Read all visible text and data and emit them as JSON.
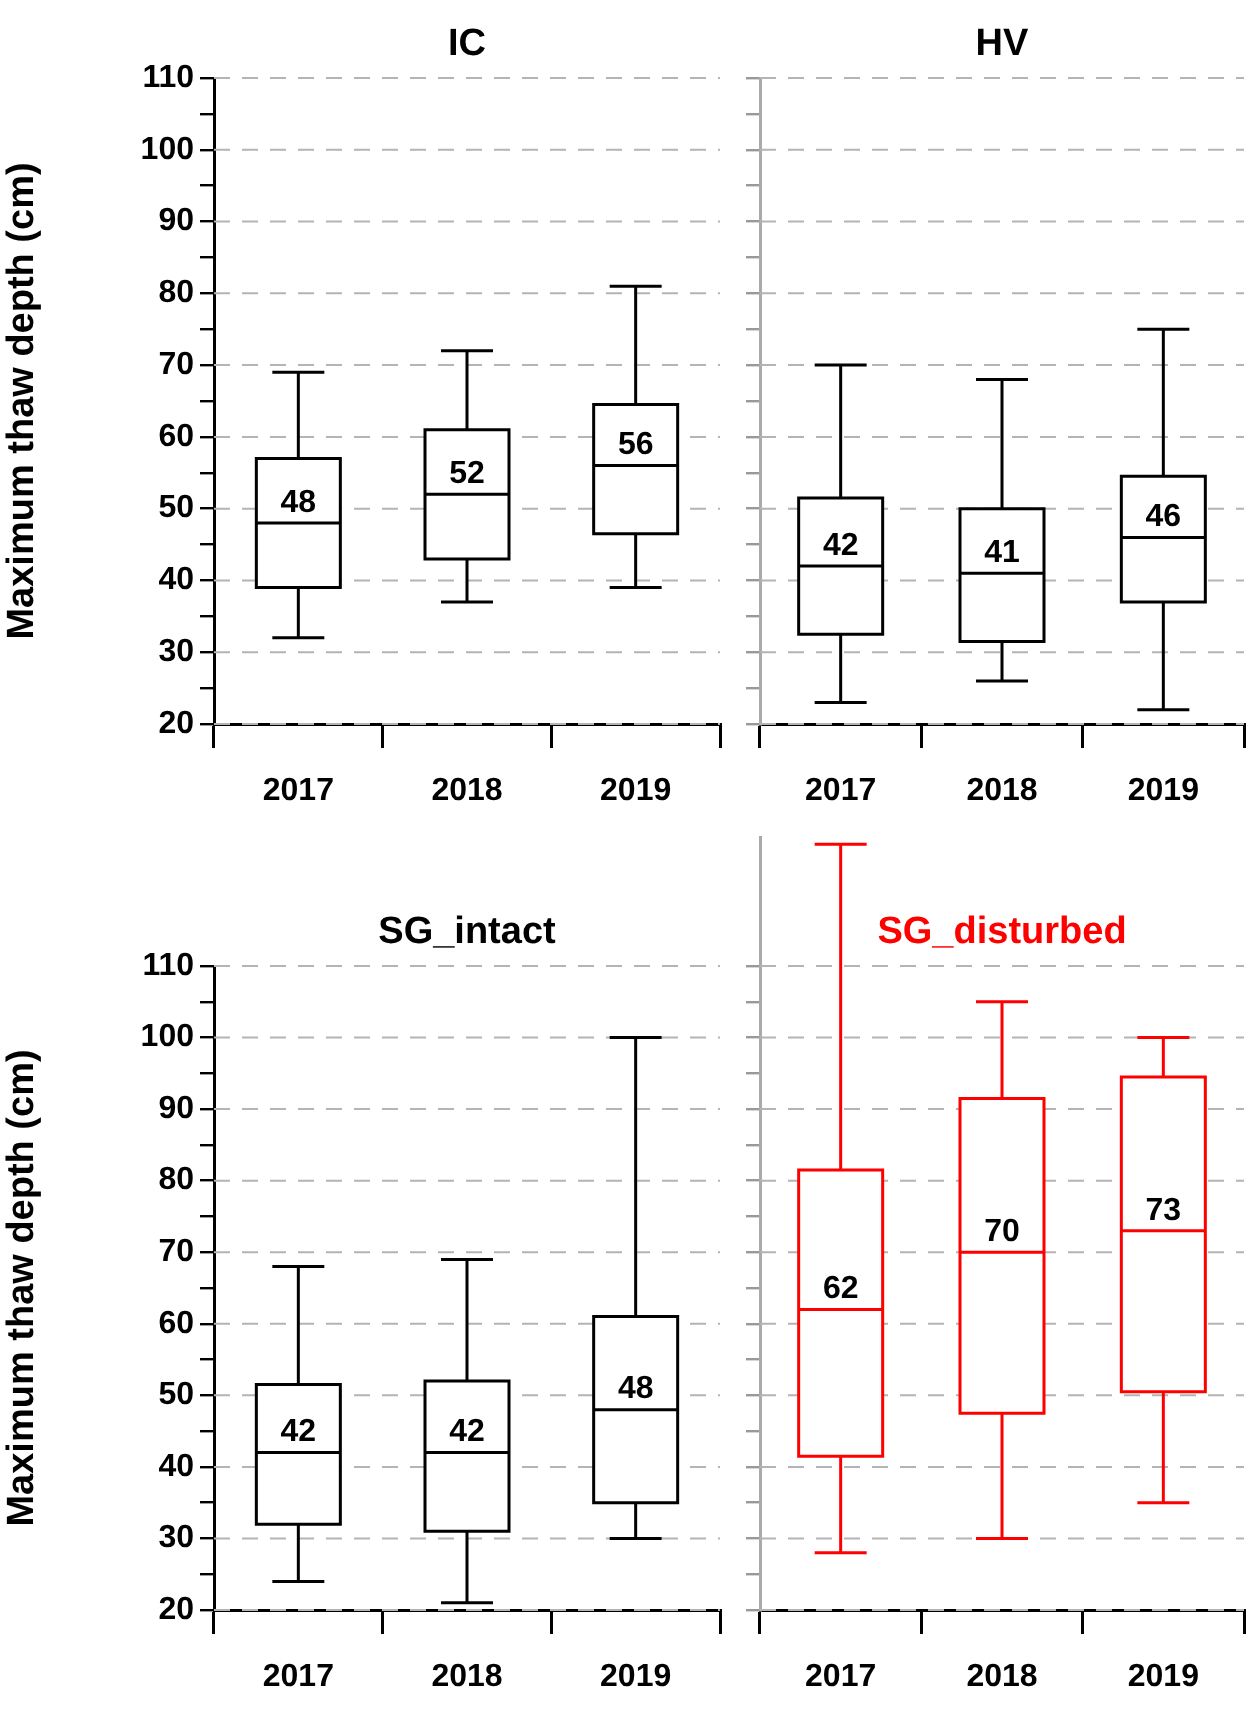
{
  "chart_data": [
    {
      "type": "box",
      "title": "IC",
      "ylabel": "Maximum thaw depth (cm)",
      "categories": [
        "2017",
        "2018",
        "2019"
      ],
      "series": [
        {
          "color": "#000000",
          "boxes": [
            {
              "low": 32,
              "q1": 39,
              "median": 48,
              "q3": 57,
              "high": 69
            },
            {
              "low": 37,
              "q1": 43,
              "median": 52,
              "q3": 61,
              "high": 72
            },
            {
              "low": 39,
              "q1": 46.5,
              "median": 56,
              "q3": 64.5,
              "high": 81
            }
          ]
        }
      ],
      "ylim": [
        20,
        110
      ],
      "yticks": [
        20,
        {
          "value": 25,
          "label": null
        },
        30,
        {
          "value": 35,
          "label": null
        },
        40,
        {
          "value": 45,
          "label": null
        },
        50,
        {
          "value": 55,
          "label": null
        },
        60,
        {
          "value": 65,
          "label": null
        },
        70,
        {
          "value": 75,
          "label": null
        },
        80,
        {
          "value": 85,
          "label": null
        },
        90,
        {
          "value": 95,
          "label": null
        },
        100,
        {
          "value": 105,
          "label": null
        },
        110
      ],
      "grid": "y",
      "annotations": [
        {
          "text": "48",
          "x": "2017",
          "y": 48
        },
        {
          "text": "52",
          "x": "2018",
          "y": 52
        },
        {
          "text": "56",
          "x": "2019",
          "y": 56
        }
      ]
    },
    {
      "type": "box",
      "title": "HV",
      "categories": [
        "2017",
        "2018",
        "2019"
      ],
      "series": [
        {
          "color": "#000000",
          "boxes": [
            {
              "low": 23,
              "q1": 32.5,
              "median": 42,
              "q3": 51.5,
              "high": 70
            },
            {
              "low": 26,
              "q1": 31.5,
              "median": 41,
              "q3": 50,
              "high": 68
            },
            {
              "low": 22,
              "q1": 37,
              "median": 46,
              "q3": 54.5,
              "high": 75
            }
          ]
        }
      ],
      "ylim": [
        20,
        110
      ],
      "yticks": [
        20,
        {
          "value": 25,
          "label": null
        },
        30,
        {
          "value": 35,
          "label": null
        },
        40,
        {
          "value": 45,
          "label": null
        },
        50,
        {
          "value": 55,
          "label": null
        },
        60,
        {
          "value": 65,
          "label": null
        },
        70,
        {
          "value": 75,
          "label": null
        },
        80,
        {
          "value": 85,
          "label": null
        },
        90,
        {
          "value": 95,
          "label": null
        },
        100,
        {
          "value": 105,
          "label": null
        },
        110
      ],
      "grid": "y",
      "tick_labels": "x",
      "annotations": [
        {
          "text": "42",
          "x": "2017",
          "y": 42
        },
        {
          "text": "41",
          "x": "2018",
          "y": 41
        },
        {
          "text": "46",
          "x": "2019",
          "y": 46
        }
      ]
    },
    {
      "type": "box",
      "title": "SG_intact",
      "ylabel": "Maximum thaw depth (cm)",
      "categories": [
        "2017",
        "2018",
        "2019"
      ],
      "series": [
        {
          "color": "#000000",
          "boxes": [
            {
              "low": 24,
              "q1": 32,
              "median": 42,
              "q3": 51.5,
              "high": 68
            },
            {
              "low": 21,
              "q1": 31,
              "median": 42,
              "q3": 52,
              "high": 69
            },
            {
              "low": 30,
              "q1": 35,
              "median": 48,
              "q3": 61,
              "high": 100
            }
          ]
        }
      ],
      "ylim": [
        20,
        110
      ],
      "yticks": [
        20,
        {
          "value": 25,
          "label": null
        },
        30,
        {
          "value": 35,
          "label": null
        },
        40,
        {
          "value": 45,
          "label": null
        },
        50,
        {
          "value": 55,
          "label": null
        },
        60,
        {
          "value": 65,
          "label": null
        },
        70,
        {
          "value": 75,
          "label": null
        },
        80,
        {
          "value": 85,
          "label": null
        },
        90,
        {
          "value": 95,
          "label": null
        },
        100,
        {
          "value": 105,
          "label": null
        },
        110
      ],
      "grid": "y",
      "annotations": [
        {
          "text": "42",
          "x": "2017",
          "y": 42
        },
        {
          "text": "42",
          "x": "2018",
          "y": 42
        },
        {
          "text": "48",
          "x": "2019",
          "y": 48
        }
      ]
    },
    {
      "type": "box",
      "title": "SG_disturbed",
      "categories": [
        "2017",
        "2018",
        "2019"
      ],
      "series": [
        {
          "color": "#ff0000",
          "boxes": [
            {
              "low": 28,
              "q1": 41.5,
              "median": 62,
              "q3": 81.5,
              "high": 127
            },
            {
              "low": 30,
              "q1": 47.5,
              "median": 70,
              "q3": 91.5,
              "high": 105
            },
            {
              "low": 35,
              "q1": 50.5,
              "median": 73,
              "q3": 94.5,
              "high": 100
            }
          ]
        }
      ],
      "ylim": [
        20,
        128
      ],
      "yticks": [
        20,
        {
          "value": 25,
          "label": null
        },
        30,
        {
          "value": 35,
          "label": null
        },
        40,
        {
          "value": 45,
          "label": null
        },
        50,
        {
          "value": 55,
          "label": null
        },
        60,
        {
          "value": 65,
          "label": null
        },
        70,
        {
          "value": 75,
          "label": null
        },
        80,
        {
          "value": 85,
          "label": null
        },
        90,
        {
          "value": 95,
          "label": null
        },
        100,
        {
          "value": 105,
          "label": null
        },
        110
      ],
      "grid": "y",
      "tick_labels": "x",
      "annotations": [
        {
          "text": "62",
          "x": "2017",
          "y": 62
        },
        {
          "text": "70",
          "x": "2018",
          "y": 70
        },
        {
          "text": "73",
          "x": "2019",
          "y": 73
        }
      ]
    }
  ]
}
